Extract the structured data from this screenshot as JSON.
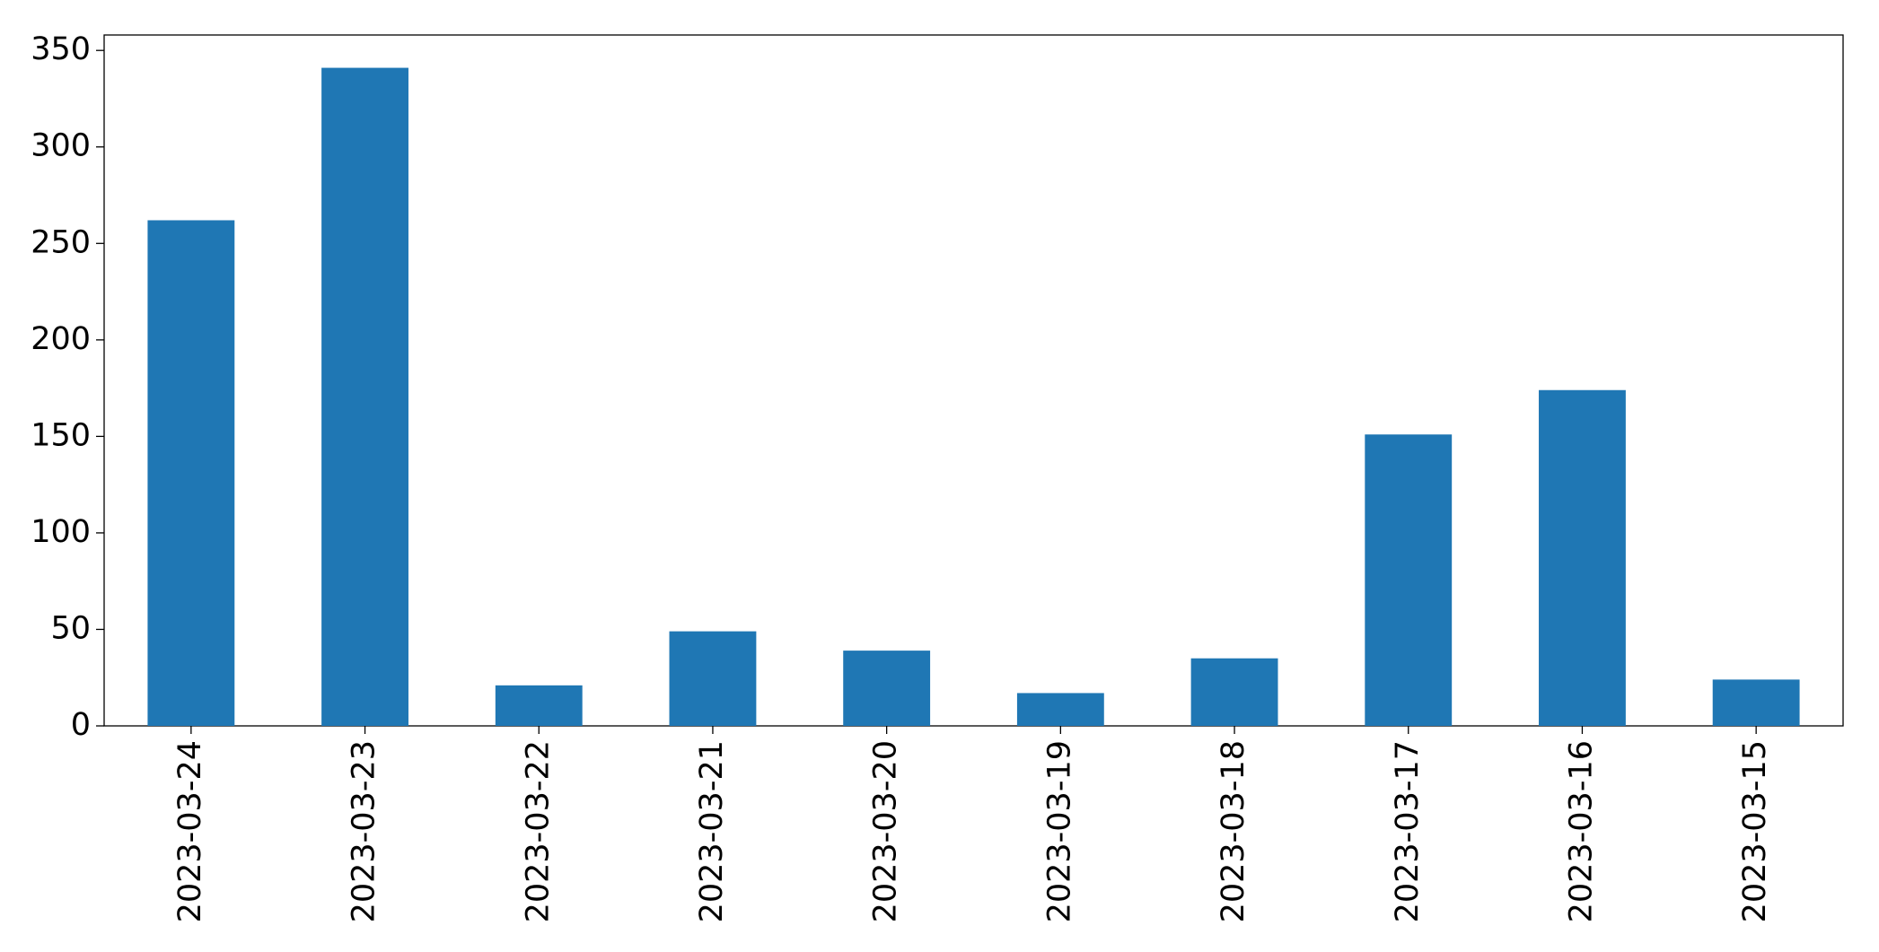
{
  "chart_data": {
    "type": "bar",
    "categories": [
      "2023-03-24",
      "2023-03-23",
      "2023-03-22",
      "2023-03-21",
      "2023-03-20",
      "2023-03-19",
      "2023-03-18",
      "2023-03-17",
      "2023-03-16",
      "2023-03-15"
    ],
    "values": [
      262,
      341,
      21,
      49,
      39,
      17,
      35,
      151,
      174,
      24
    ],
    "color": "#1f77b4",
    "ylim": [
      0,
      358
    ],
    "yticks": [
      0,
      50,
      100,
      150,
      200,
      250,
      300,
      350
    ],
    "grid": false
  }
}
